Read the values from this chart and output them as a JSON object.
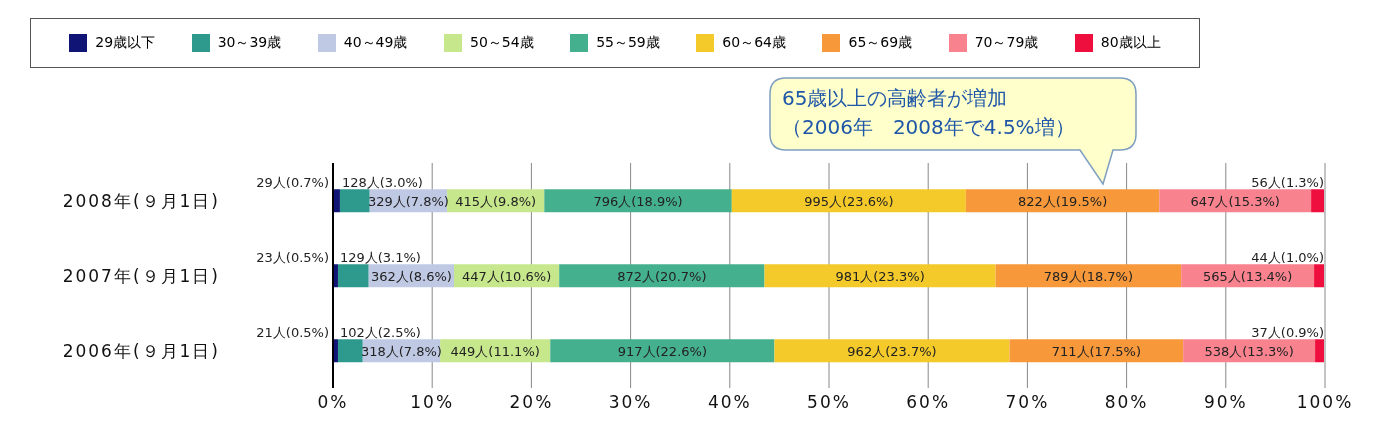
{
  "chart_data": {
    "type": "bar",
    "orientation": "horizontal",
    "stacked": true,
    "categories": [
      "2008年(９月1日)",
      "2007年(９月1日)",
      "2006年(９月1日)"
    ],
    "series": [
      {
        "name": "29歳以下",
        "color": "#0f1475",
        "values": [
          0.7,
          0.5,
          0.5
        ],
        "value_labels": [
          "29人(0.7%)",
          "23人(0.5%)",
          "21人(0.5%)"
        ]
      },
      {
        "name": "30～39歳",
        "color": "#2e9a8e",
        "values": [
          3.0,
          3.1,
          2.5
        ],
        "value_labels": [
          "128人(3.0%)",
          "129人(3.1%)",
          "102人(2.5%)"
        ]
      },
      {
        "name": "40～49歳",
        "color": "#c0c9e4",
        "values": [
          7.8,
          8.6,
          7.8
        ],
        "value_labels": [
          "329人(7.8%)",
          "362人(8.6%)",
          "318人(7.8%)"
        ]
      },
      {
        "name": "50～54歳",
        "color": "#c6e78c",
        "values": [
          9.8,
          10.6,
          11.1
        ],
        "value_labels": [
          "415人(9.8%)",
          "447人(10.6%)",
          "449人(11.1%)"
        ]
      },
      {
        "name": "55～59歳",
        "color": "#45b08d",
        "values": [
          18.9,
          20.7,
          22.6
        ],
        "value_labels": [
          "796人(18.9%)",
          "872人(20.7%)",
          "917人(22.6%)"
        ]
      },
      {
        "name": "60～64歳",
        "color": "#f4ca2b",
        "values": [
          23.6,
          23.3,
          23.7
        ],
        "value_labels": [
          "995人(23.6%)",
          "981人(23.3%)",
          "962人(23.7%)"
        ]
      },
      {
        "name": "65～69歳",
        "color": "#f7983b",
        "values": [
          19.5,
          18.7,
          17.5
        ],
        "value_labels": [
          "822人(19.5%)",
          "789人(18.7%)",
          "711人(17.5%)"
        ]
      },
      {
        "name": "70～79歳",
        "color": "#f8838f",
        "values": [
          15.3,
          13.4,
          13.3
        ],
        "value_labels": [
          "647人(15.3%)",
          "565人(13.4%)",
          "538人(13.3%)"
        ]
      },
      {
        "name": "80歳以上",
        "color": "#ef0f3f",
        "values": [
          1.3,
          1.0,
          0.9
        ],
        "value_labels": [
          "56人(1.3%)",
          "44人(1.0%)",
          "37人(0.9%)"
        ]
      }
    ],
    "xlim": [
      0,
      100
    ],
    "xticks": [
      {
        "value": 0,
        "label": "0%"
      },
      {
        "value": 10,
        "label": "10%"
      },
      {
        "value": 20,
        "label": "20%"
      },
      {
        "value": 30,
        "label": "30%"
      },
      {
        "value": 40,
        "label": "40%"
      },
      {
        "value": 50,
        "label": "50%"
      },
      {
        "value": 60,
        "label": "60%"
      },
      {
        "value": 70,
        "label": "70%"
      },
      {
        "value": 80,
        "label": "80%"
      },
      {
        "value": 90,
        "label": "90%"
      },
      {
        "value": 100,
        "label": "100%"
      }
    ],
    "grid": "x",
    "legend": "top",
    "annotations": [
      "65歳以上の高齢者が増加",
      "（2006年　2008年で4.5%増）"
    ]
  }
}
